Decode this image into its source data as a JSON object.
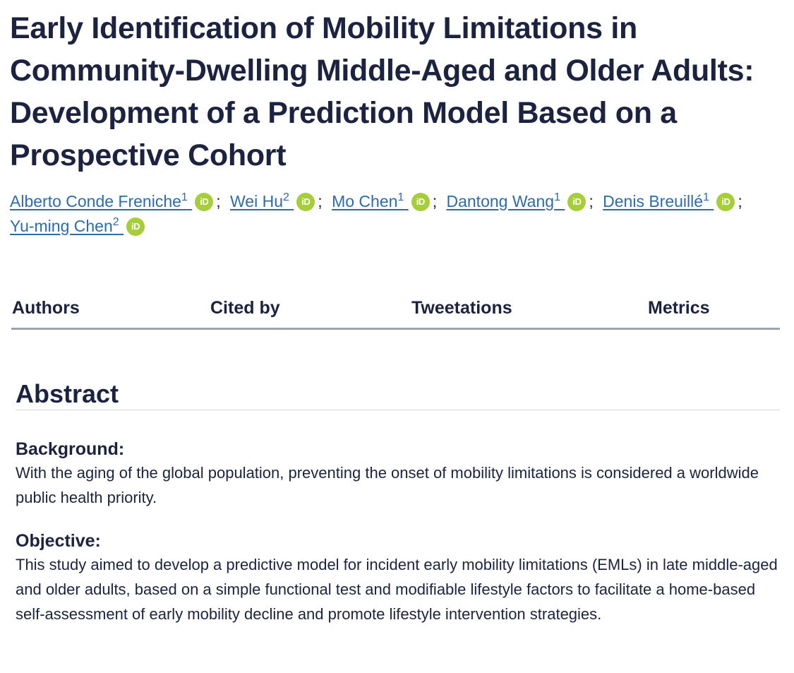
{
  "article": {
    "title": "Early Identification of Mobility Limitations in Community-Dwelling Middle-Aged and Older Adults: Development of a Prediction Model Based on a Prospective Cohort"
  },
  "authors": [
    {
      "name": "Alberto Conde Freniche",
      "affiliation": "1"
    },
    {
      "name": "Wei Hu",
      "affiliation": "2"
    },
    {
      "name": "Mo Chen",
      "affiliation": "1"
    },
    {
      "name": "Dantong Wang",
      "affiliation": "1"
    },
    {
      "name": "Denis Breuillé",
      "affiliation": "1"
    },
    {
      "name": "Yu-ming Chen",
      "affiliation": "2"
    }
  ],
  "orcid_label": "iD",
  "separator": ";",
  "tabs": [
    {
      "label": "Authors"
    },
    {
      "label": "Cited by"
    },
    {
      "label": "Tweetations"
    },
    {
      "label": "Metrics"
    }
  ],
  "abstract": {
    "heading": "Abstract",
    "sections": [
      {
        "label": "Background:",
        "text": "With the aging of the global population, preventing the onset of mobility limitations is considered a worldwide public health priority."
      },
      {
        "label": "Objective:",
        "text": "This study aimed to develop a predictive model for incident early mobility limitations (EMLs) in late middle-aged and older adults, based on a simple functional test and modifiable lifestyle factors to facilitate a home-based self-assessment of early mobility decline and promote lifestyle intervention strategies."
      }
    ]
  },
  "colors": {
    "text": "#1b2340",
    "link": "#2b6cb0",
    "orcid": "#a6ce39",
    "tab_border": "#9ba3ad"
  }
}
